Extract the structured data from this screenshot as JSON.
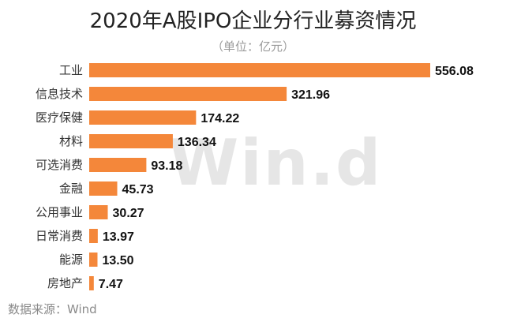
{
  "title": "2020年A股IPO企业分行业募资情况",
  "unit_note": "（单位：亿元）",
  "watermark": "Win.d",
  "source": "数据来源：Wind",
  "colors": {
    "bar": "#F4873A",
    "text": "#333333",
    "source": "#8a8a8a"
  },
  "chart_data": {
    "type": "bar",
    "orientation": "horizontal",
    "categories": [
      "工业",
      "信息技术",
      "医疗保健",
      "材料",
      "可选消费",
      "金融",
      "公用事业",
      "日常消费",
      "能源",
      "房地产"
    ],
    "values": [
      556.08,
      321.96,
      174.22,
      136.34,
      93.18,
      45.73,
      30.27,
      13.97,
      13.5,
      7.47
    ],
    "value_labels": [
      "556.08",
      "321.96",
      "174.22",
      "136.34",
      "93.18",
      "45.73",
      "30.27",
      "13.97",
      "13.50",
      "7.47"
    ],
    "xlim": [
      0,
      556.08
    ],
    "grid": false,
    "legend": "none"
  }
}
